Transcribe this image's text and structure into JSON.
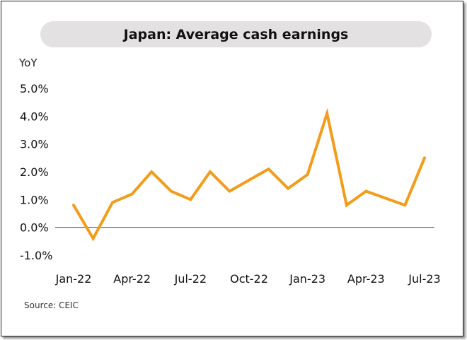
{
  "chart_data": {
    "type": "line",
    "title": "Japan: Average cash earnings",
    "ylabel": "YoY",
    "source": "Source: CEIC",
    "ylim": [
      -1.0,
      5.0
    ],
    "y_ticks": [
      "5.0%",
      "4.0%",
      "3.0%",
      "2.0%",
      "1.0%",
      "0.0%",
      "-1.0%"
    ],
    "y_tick_values": [
      5,
      4,
      3,
      2,
      1,
      0,
      -1
    ],
    "x_tick_labels": [
      "Jan-22",
      "Apr-22",
      "Jul-22",
      "Oct-22",
      "Jan-23",
      "Apr-23",
      "Jul-23"
    ],
    "x_tick_index": [
      0,
      3,
      6,
      9,
      12,
      15,
      18
    ],
    "x": [
      "Jan-22",
      "Feb-22",
      "Mar-22",
      "Apr-22",
      "May-22",
      "Jun-22",
      "Jul-22",
      "Aug-22",
      "Sep-22",
      "Oct-22",
      "Nov-22",
      "Dec-22",
      "Jan-23",
      "Feb-23",
      "Mar-23",
      "Apr-23",
      "May-23",
      "Jun-23",
      "Jul-23"
    ],
    "series": [
      {
        "values": [
          0.8,
          -0.4,
          0.9,
          1.2,
          2.0,
          1.3,
          1.0,
          2.0,
          1.3,
          1.7,
          2.1,
          1.4,
          1.9,
          4.1,
          0.8,
          1.3,
          1.05,
          0.8,
          2.5
        ]
      }
    ],
    "line_color": "#f39c1a",
    "zero_line_color": "#555555"
  }
}
